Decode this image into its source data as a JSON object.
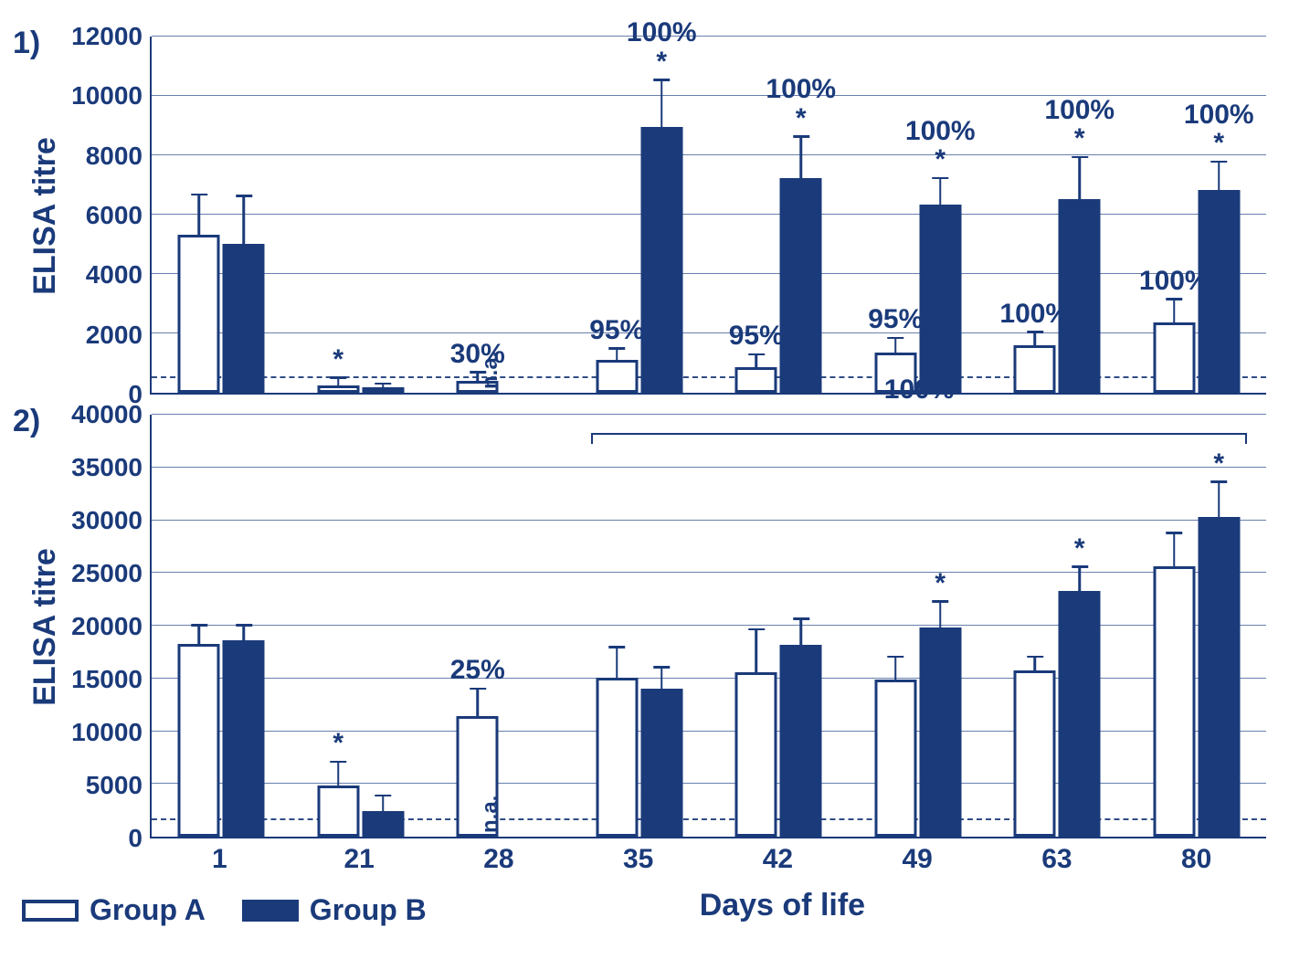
{
  "colors": {
    "ink": "#1a3a7a",
    "grid": "#2a4a8a",
    "bg": "#ffffff",
    "barFill": "#1a3a7a",
    "barOpen": "#ffffff"
  },
  "xlabel": "Days of life",
  "categories": [
    "1",
    "21",
    "28",
    "35",
    "42",
    "49",
    "63",
    "80"
  ],
  "barWidthPx": 46,
  "legend": {
    "a": "Group A",
    "b": "Group B"
  },
  "panels": [
    {
      "num": "1)",
      "heightPx": 392,
      "ylabel": "ELISA titre",
      "ylim": [
        0,
        12000
      ],
      "ytick_step": 2000,
      "threshold": 500,
      "bracket": null,
      "data": [
        {
          "a": {
            "v": 5300,
            "err": 1350,
            "pct": null,
            "star": false,
            "na": false
          },
          "b": {
            "v": 5000,
            "err": 1600,
            "pct": null,
            "star": false,
            "na": false
          }
        },
        {
          "a": {
            "v": 250,
            "err": 260,
            "pct": null,
            "star": true,
            "na": false
          },
          "b": {
            "v": 130,
            "err": 130,
            "pct": null,
            "star": false,
            "na": false
          }
        },
        {
          "a": {
            "v": 400,
            "err": 300,
            "pct": "30%",
            "star": false,
            "na": false
          },
          "b": {
            "v": 0,
            "err": 0,
            "pct": null,
            "star": false,
            "na": true
          }
        },
        {
          "a": {
            "v": 1100,
            "err": 400,
            "pct": "95%",
            "star": false,
            "na": false
          },
          "b": {
            "v": 8900,
            "err": 1600,
            "pct": "100%",
            "star": true,
            "na": false
          }
        },
        {
          "a": {
            "v": 850,
            "err": 450,
            "pct": "95%",
            "star": false,
            "na": false
          },
          "b": {
            "v": 7200,
            "err": 1400,
            "pct": "100%",
            "star": true,
            "na": false
          }
        },
        {
          "a": {
            "v": 1350,
            "err": 500,
            "pct": "95%",
            "star": false,
            "na": false
          },
          "b": {
            "v": 6300,
            "err": 900,
            "pct": "100%",
            "star": true,
            "na": false
          }
        },
        {
          "a": {
            "v": 1600,
            "err": 450,
            "pct": "100%",
            "star": false,
            "na": false
          },
          "b": {
            "v": 6500,
            "err": 1400,
            "pct": "100%",
            "star": true,
            "na": false
          }
        },
        {
          "a": {
            "v": 2350,
            "err": 800,
            "pct": "100%",
            "star": false,
            "na": false
          },
          "b": {
            "v": 6800,
            "err": 950,
            "pct": "100%",
            "star": true,
            "na": false
          }
        }
      ]
    },
    {
      "num": "2)",
      "heightPx": 464,
      "ylabel": "ELISA titre",
      "ylim": [
        0,
        40000
      ],
      "ytick_step": 5000,
      "threshold": 1600,
      "bracket": {
        "fromIdx": 3,
        "toIdx": 7,
        "y": 37200,
        "label": "100%"
      },
      "data": [
        {
          "a": {
            "v": 18200,
            "err": 1800,
            "pct": null,
            "star": false,
            "na": false
          },
          "b": {
            "v": 18500,
            "err": 1500,
            "pct": null,
            "star": false,
            "na": false
          }
        },
        {
          "a": {
            "v": 4800,
            "err": 2300,
            "pct": null,
            "star": true,
            "na": false
          },
          "b": {
            "v": 2400,
            "err": 1500,
            "pct": null,
            "star": false,
            "na": false
          }
        },
        {
          "a": {
            "v": 11400,
            "err": 2600,
            "pct": "25%",
            "star": false,
            "na": false
          },
          "b": {
            "v": 0,
            "err": 0,
            "pct": null,
            "star": false,
            "na": true
          }
        },
        {
          "a": {
            "v": 15000,
            "err": 2900,
            "pct": null,
            "star": false,
            "na": false
          },
          "b": {
            "v": 14000,
            "err": 2000,
            "pct": null,
            "star": false,
            "na": false
          }
        },
        {
          "a": {
            "v": 15500,
            "err": 4100,
            "pct": null,
            "star": false,
            "na": false
          },
          "b": {
            "v": 18100,
            "err": 2500,
            "pct": null,
            "star": false,
            "na": false
          }
        },
        {
          "a": {
            "v": 14800,
            "err": 2200,
            "pct": null,
            "star": false,
            "na": false
          },
          "b": {
            "v": 19700,
            "err": 2500,
            "pct": null,
            "star": true,
            "na": false
          }
        },
        {
          "a": {
            "v": 15700,
            "err": 1300,
            "pct": null,
            "star": false,
            "na": false
          },
          "b": {
            "v": 23200,
            "err": 2300,
            "pct": null,
            "star": true,
            "na": false
          }
        },
        {
          "a": {
            "v": 25500,
            "err": 3200,
            "pct": null,
            "star": false,
            "na": false
          },
          "b": {
            "v": 30200,
            "err": 3300,
            "pct": null,
            "star": true,
            "na": false
          }
        }
      ]
    }
  ]
}
